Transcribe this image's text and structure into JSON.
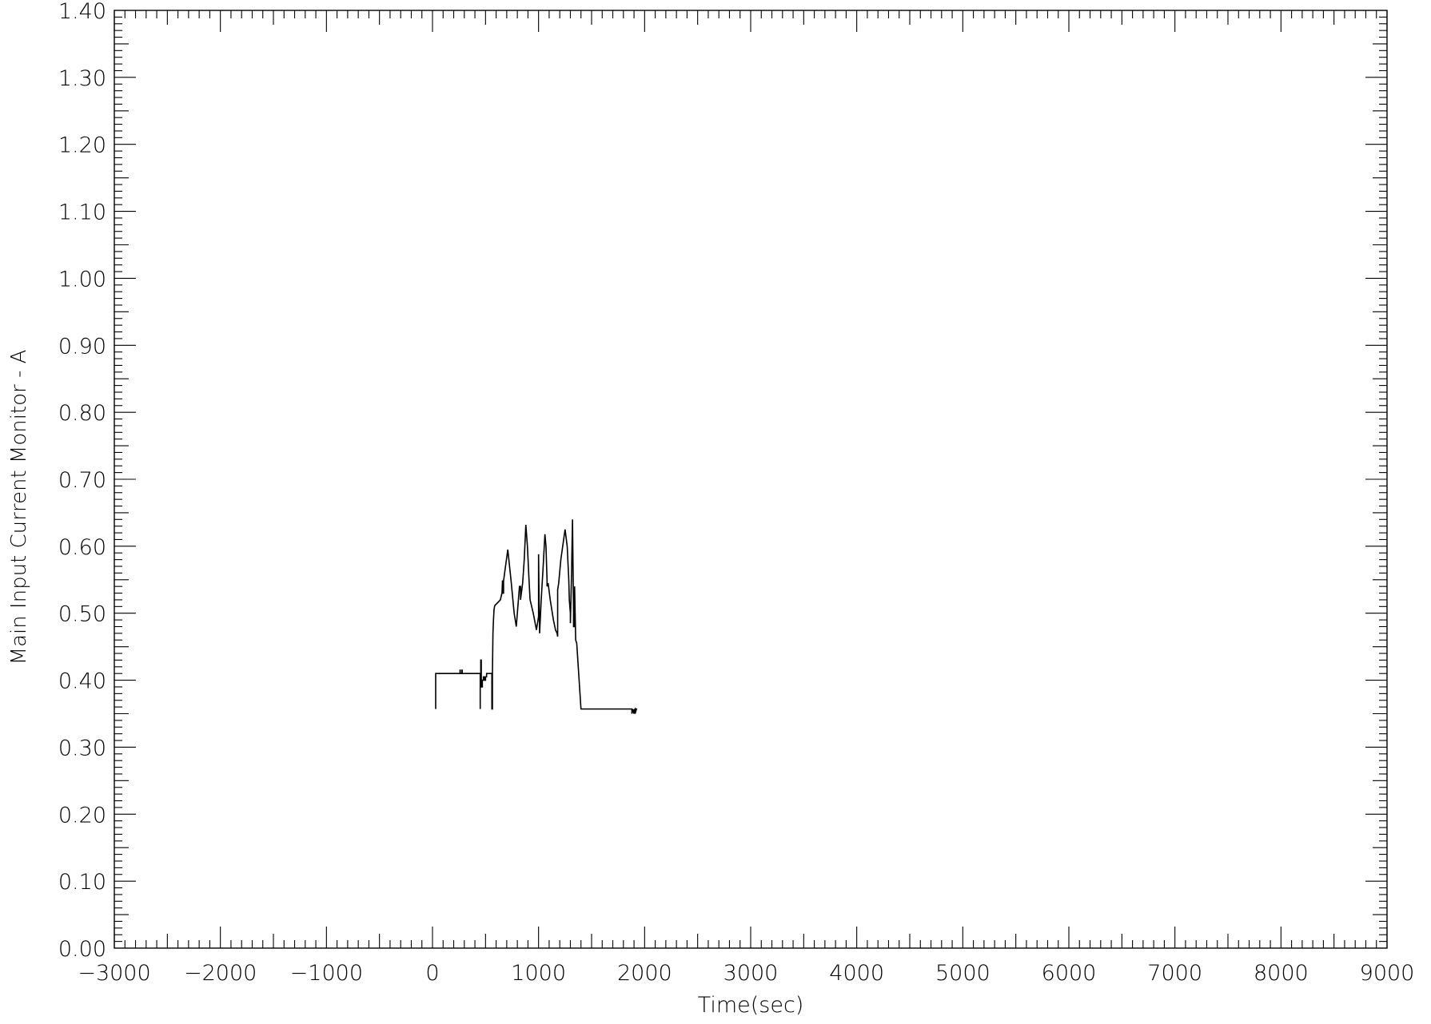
{
  "chart_data": {
    "type": "line",
    "title": "",
    "xlabel": "Time(sec)",
    "ylabel": "Main Input Current Monitor - A",
    "xlim": [
      -3000,
      9000
    ],
    "ylim": [
      0.0,
      1.4
    ],
    "x_major_ticks": [
      -3000,
      -2000,
      -1000,
      0,
      1000,
      2000,
      3000,
      4000,
      5000,
      6000,
      7000,
      8000,
      9000
    ],
    "x_tick_labels": [
      "−3000",
      "−2000",
      "−1000",
      "0",
      "1000",
      "2000",
      "3000",
      "4000",
      "5000",
      "6000",
      "7000",
      "8000",
      "9000"
    ],
    "x_minor_step": 100,
    "y_major_ticks": [
      0.0,
      0.1,
      0.2,
      0.3,
      0.4,
      0.5,
      0.6,
      0.7,
      0.8,
      0.9,
      1.0,
      1.1,
      1.2,
      1.3,
      1.4
    ],
    "y_tick_labels": [
      "0.00",
      "0.10",
      "0.20",
      "0.30",
      "0.40",
      "0.50",
      "0.60",
      "0.70",
      "0.80",
      "0.90",
      "1.00",
      "1.10",
      "1.20",
      "1.30",
      "1.40"
    ],
    "y_minor_step": 0.01,
    "grid": false,
    "line_color": "#000000",
    "series": [
      {
        "x": [
          30,
          30,
          30,
          30,
          30,
          260,
          260,
          262,
          262,
          278,
          278,
          280,
          280,
          450,
          450,
          450,
          455,
          455,
          460,
          460,
          470,
          470,
          480,
          480,
          490,
          490,
          500,
          500,
          510,
          510,
          530,
          530,
          560,
          560,
          565,
          565,
          570,
          575,
          580,
          585,
          590,
          610,
          640,
          655,
          660,
          665,
          665,
          670,
          670,
          680,
          710,
          740,
          770,
          790,
          805,
          820,
          830,
          830,
          850,
          865,
          880,
          895,
          910,
          920,
          950,
          980,
          995,
          1000,
          1000,
          1005,
          1010,
          1010,
          1025,
          1040,
          1060,
          1070,
          1080,
          1080,
          1090,
          1110,
          1140,
          1160,
          1175,
          1180,
          1180,
          1190,
          1210,
          1250,
          1270,
          1285,
          1290,
          1300,
          1300,
          1310,
          1320,
          1330,
          1330,
          1340,
          1340,
          1350,
          1360,
          1400,
          1880,
          1880,
          1890,
          1890,
          1900,
          1900,
          1910,
          1910,
          1920,
          1920,
          1930
        ],
        "y": [
          0.357,
          0.4,
          0.395,
          0.41,
          0.41,
          0.41,
          0.415,
          0.415,
          0.41,
          0.41,
          0.415,
          0.415,
          0.41,
          0.41,
          0.357,
          0.41,
          0.41,
          0.43,
          0.43,
          0.39,
          0.39,
          0.4,
          0.4,
          0.405,
          0.405,
          0.4,
          0.4,
          0.405,
          0.405,
          0.41,
          0.41,
          0.41,
          0.41,
          0.357,
          0.357,
          0.41,
          0.47,
          0.49,
          0.505,
          0.51,
          0.512,
          0.515,
          0.52,
          0.53,
          0.548,
          0.548,
          0.53,
          0.53,
          0.548,
          0.56,
          0.595,
          0.55,
          0.5,
          0.48,
          0.51,
          0.54,
          0.54,
          0.52,
          0.545,
          0.58,
          0.632,
          0.6,
          0.55,
          0.52,
          0.5,
          0.475,
          0.49,
          0.495,
          0.588,
          0.52,
          0.47,
          0.47,
          0.52,
          0.56,
          0.618,
          0.6,
          0.55,
          0.54,
          0.545,
          0.52,
          0.49,
          0.475,
          0.47,
          0.465,
          0.535,
          0.545,
          0.58,
          0.625,
          0.6,
          0.55,
          0.52,
          0.5,
          0.485,
          0.55,
          0.64,
          0.5,
          0.48,
          0.48,
          0.54,
          0.46,
          0.455,
          0.357,
          0.357,
          0.35,
          0.357,
          0.355,
          0.35,
          0.355,
          0.357,
          0.35,
          0.355,
          0.357,
          0.357
        ]
      }
    ]
  }
}
